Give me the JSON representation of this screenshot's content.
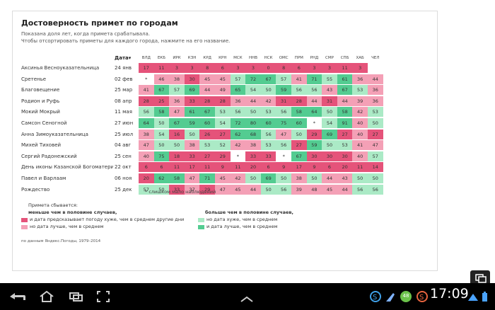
{
  "title": "Достоверность примет по городам",
  "subtitle_lines": [
    "Показана доля лет, когда примета срабатывала.",
    "Чтобы отсортировать приметы для каждого города, нажмите на его название."
  ],
  "date_header": "Дата▾",
  "chart_data": {
    "type": "heatmap",
    "columns": [
      "ВЛД",
      "ЕКБ",
      "ИРК",
      "КЗН",
      "КРД",
      "КРН",
      "МСК",
      "ННВ",
      "НСК",
      "ОМС",
      "ПРМ",
      "РНД",
      "СМР",
      "СПБ",
      "ХАБ",
      "ЧЕЛ"
    ],
    "rows": [
      {
        "label": "Аксинья Весноуказательница",
        "date": "24 янв",
        "values": [
          "17",
          "11",
          "3",
          "3",
          "8",
          "6",
          "3",
          "3",
          "0",
          "8",
          "6",
          "3",
          "3",
          "11",
          "3",
          ""
        ]
      },
      {
        "label": "Сретенье",
        "date": "02 фев",
        "values": [
          "*",
          "46",
          "38",
          "30",
          "45",
          "45",
          "57",
          "72",
          "67",
          "57",
          "41",
          "71",
          "55",
          "61",
          "36",
          "44"
        ]
      },
      {
        "label": "Благовещение",
        "date": "25 мар",
        "values": [
          "41",
          "67",
          "57",
          "69",
          "44",
          "49",
          "65",
          "54",
          "50",
          "59",
          "56",
          "56",
          "43",
          "67",
          "53",
          "36"
        ]
      },
      {
        "label": "Родион и Руфь",
        "date": "08 апр",
        "values": [
          "28",
          "25",
          "36",
          "33",
          "28",
          "28",
          "36",
          "44",
          "42",
          "31",
          "28",
          "44",
          "31",
          "44",
          "39",
          "36"
        ]
      },
      {
        "label": "Мокий Мокрый",
        "date": "11 мая",
        "values": [
          "56",
          "58",
          "47",
          "61",
          "67",
          "53",
          "56",
          "50",
          "53",
          "56",
          "58",
          "64",
          "50",
          "58",
          "42",
          "53"
        ]
      },
      {
        "label": "Самсон Сеногной",
        "date": "27 июн",
        "values": [
          "64",
          "50",
          "67",
          "59",
          "60",
          "54",
          "72",
          "80",
          "60",
          "75",
          "60",
          "*",
          "54",
          "91",
          "40",
          "50"
        ]
      },
      {
        "label": "Анна Зимоуказательница",
        "date": "25 июл",
        "values": [
          "38",
          "54",
          "16",
          "50",
          "26",
          "27",
          "62",
          "68",
          "56",
          "47",
          "50",
          "29",
          "69",
          "27",
          "40",
          "27"
        ]
      },
      {
        "label": "Михей Тиховей",
        "date": "04 авг",
        "values": [
          "47",
          "50",
          "50",
          "38",
          "53",
          "52",
          "42",
          "38",
          "53",
          "56",
          "27",
          "59",
          "50",
          "53",
          "41",
          "47"
        ]
      },
      {
        "label": "Сергий Радонежский",
        "date": "25 сен",
        "values": [
          "40",
          "75",
          "18",
          "33",
          "27",
          "29",
          "*",
          "33",
          "33",
          "*",
          "67",
          "30",
          "30",
          "30",
          "40",
          "57"
        ]
      },
      {
        "label": "День иконы Казанской Богоматери",
        "date": "22 окт",
        "values": [
          "6",
          "6",
          "11",
          "17",
          "11",
          "9",
          "11",
          "20",
          "6",
          "9",
          "17",
          "9",
          "6",
          "20",
          "11",
          "14"
        ]
      },
      {
        "label": "Павел и Варлаам",
        "date": "06 ноя",
        "values": [
          "20",
          "62",
          "58",
          "47",
          "71",
          "45",
          "42",
          "50",
          "69",
          "50",
          "38",
          "50",
          "44",
          "43",
          "50",
          "50"
        ]
      },
      {
        "label": "Рождество",
        "date": "25 дек",
        "values": [
          "57",
          "50",
          "33",
          "37",
          "29",
          "47",
          "45",
          "44",
          "50",
          "56",
          "39",
          "48",
          "45",
          "44",
          "56",
          "56"
        ]
      }
    ],
    "colors": {
      "red_dark": "#e5537a",
      "red_light": "#f4a0b6",
      "green_light": "#abeac6",
      "green_dark": "#53cc91"
    }
  },
  "footnote": "* слишком мало наблюдений",
  "legend": {
    "intro": "Примета сбывается:",
    "less_title": "меньше чем в половине случаев,",
    "less_items": [
      "и дата предсказывает погоду хуже, чем в среднем другие дни",
      "но дата лучше, чем в среднем"
    ],
    "more_title": "больше чем в половине случаев,",
    "more_items": [
      "но дата хуже, чем в среднем",
      "и дата лучше, чем в среднем"
    ]
  },
  "source": "по данным Яндекс.Погоды, 1979–2014",
  "statusbar": {
    "time": "17:09",
    "badge": "48",
    "icons": [
      "back-icon",
      "home-icon",
      "recent-apps-icon",
      "screenshot-icon",
      "up-chevron-icon"
    ]
  }
}
